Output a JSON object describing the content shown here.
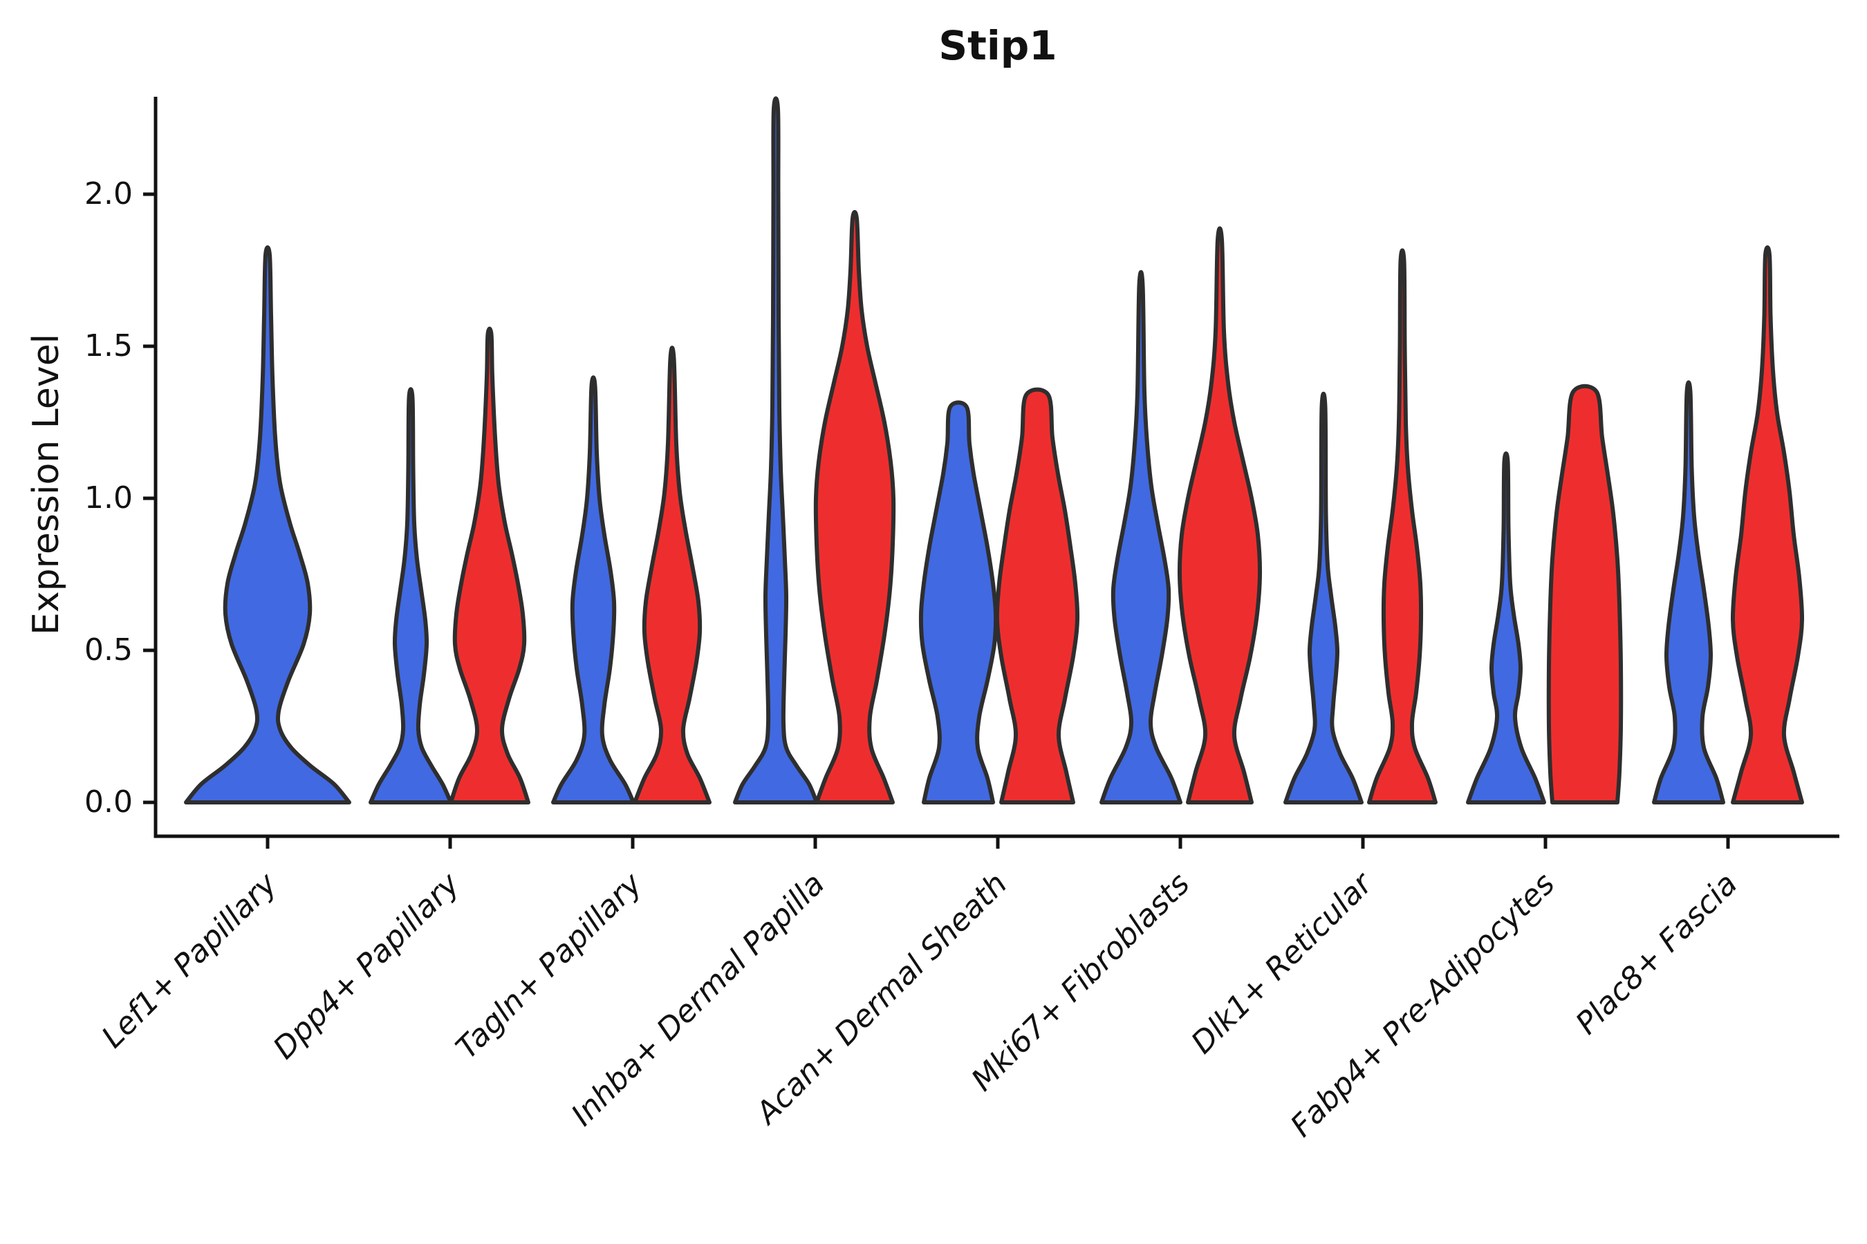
{
  "title": "Stip1",
  "axes": {
    "ylabel": "Expression Level",
    "ytick_labels": [
      "0.0",
      "0.5",
      "1.0",
      "1.5",
      "2.0"
    ]
  },
  "chart_data": {
    "type": "violin",
    "title": "Stip1",
    "xlabel": "",
    "ylabel": "Expression Level",
    "grid": false,
    "legend": "none",
    "ylim": [
      -0.11,
      2.32
    ],
    "ytick_values": [
      0.0,
      0.5,
      1.0,
      1.5,
      2.0
    ],
    "categories": [
      "Lef1+ Papillary",
      "Dpp4+ Papillary",
      "Tagln+ Papillary",
      "Inhba+ Dermal Papilla",
      "Acan+ Dermal Sheath",
      "Mki67+ Fibroblasts",
      "Dlk1+ Reticular",
      "Fabp4+ Pre-Adipocytes",
      "Plac8+ Fascia"
    ],
    "series": [
      {
        "name": "blue",
        "color": "#4169E1"
      },
      {
        "name": "red",
        "color": "#EE2E2E"
      }
    ],
    "edge_color": "#2e2e2e",
    "note": "Each violin: profile = [expression_value, half_width_px] pairs from base (0) to top; max_value = top of violin; blunt = truncated flat top.",
    "violins": [
      {
        "category": "Lef1+ Papillary",
        "series": "blue",
        "center_offset": 0,
        "max_value": 1.8,
        "blunt": false,
        "profile": [
          [
            0,
            118
          ],
          [
            0.06,
            96
          ],
          [
            0.12,
            62
          ],
          [
            0.18,
            34
          ],
          [
            0.24,
            18
          ],
          [
            0.3,
            16
          ],
          [
            0.4,
            30
          ],
          [
            0.52,
            52
          ],
          [
            0.62,
            61
          ],
          [
            0.72,
            58
          ],
          [
            0.82,
            46
          ],
          [
            0.92,
            32
          ],
          [
            1.05,
            18
          ],
          [
            1.2,
            11
          ],
          [
            1.4,
            7
          ],
          [
            1.6,
            5
          ],
          [
            1.8,
            3
          ]
        ]
      },
      {
        "category": "Dpp4+ Papillary",
        "series": "blue",
        "center_offset": -57,
        "max_value": 1.33,
        "blunt": false,
        "profile": [
          [
            0,
            58
          ],
          [
            0.06,
            46
          ],
          [
            0.12,
            30
          ],
          [
            0.18,
            16
          ],
          [
            0.24,
            11
          ],
          [
            0.32,
            13
          ],
          [
            0.42,
            19
          ],
          [
            0.52,
            23
          ],
          [
            0.6,
            21
          ],
          [
            0.7,
            15
          ],
          [
            0.8,
            9
          ],
          [
            0.92,
            5
          ],
          [
            1.1,
            3.5
          ],
          [
            1.33,
            2.5
          ]
        ]
      },
      {
        "category": "Dpp4+ Papillary",
        "series": "red",
        "center_offset": 57,
        "max_value": 1.54,
        "blunt": false,
        "profile": [
          [
            0,
            56
          ],
          [
            0.08,
            44
          ],
          [
            0.16,
            26
          ],
          [
            0.24,
            18
          ],
          [
            0.34,
            28
          ],
          [
            0.44,
            43
          ],
          [
            0.52,
            50
          ],
          [
            0.62,
            48
          ],
          [
            0.72,
            41
          ],
          [
            0.82,
            32
          ],
          [
            0.92,
            22
          ],
          [
            1.05,
            13
          ],
          [
            1.2,
            8
          ],
          [
            1.4,
            4
          ],
          [
            1.54,
            2.5
          ]
        ]
      },
      {
        "category": "Tagln+ Papillary",
        "series": "blue",
        "center_offset": -57,
        "max_value": 1.37,
        "blunt": false,
        "profile": [
          [
            0,
            58
          ],
          [
            0.06,
            46
          ],
          [
            0.14,
            24
          ],
          [
            0.22,
            13
          ],
          [
            0.32,
            16
          ],
          [
            0.44,
            24
          ],
          [
            0.56,
            29
          ],
          [
            0.66,
            30
          ],
          [
            0.76,
            25
          ],
          [
            0.88,
            16
          ],
          [
            1.0,
            9
          ],
          [
            1.15,
            5
          ],
          [
            1.37,
            2.5
          ]
        ]
      },
      {
        "category": "Tagln+ Papillary",
        "series": "red",
        "center_offset": 57,
        "max_value": 1.46,
        "blunt": false,
        "profile": [
          [
            0,
            54
          ],
          [
            0.08,
            40
          ],
          [
            0.16,
            22
          ],
          [
            0.24,
            16
          ],
          [
            0.34,
            25
          ],
          [
            0.46,
            35
          ],
          [
            0.56,
            40
          ],
          [
            0.66,
            38
          ],
          [
            0.78,
            29
          ],
          [
            0.9,
            19
          ],
          [
            1.02,
            11
          ],
          [
            1.18,
            6
          ],
          [
            1.46,
            2.5
          ]
        ]
      },
      {
        "category": "Inhba+ Dermal Papilla",
        "series": "blue",
        "center_offset": -57,
        "max_value": 2.28,
        "blunt": false,
        "profile": [
          [
            0,
            59
          ],
          [
            0.06,
            48
          ],
          [
            0.12,
            30
          ],
          [
            0.18,
            15
          ],
          [
            0.26,
            11
          ],
          [
            0.4,
            12
          ],
          [
            0.55,
            14
          ],
          [
            0.68,
            15
          ],
          [
            0.8,
            13
          ],
          [
            0.95,
            10
          ],
          [
            1.1,
            7
          ],
          [
            1.3,
            5
          ],
          [
            1.6,
            4
          ],
          [
            2.0,
            3.5
          ],
          [
            2.28,
            3
          ]
        ]
      },
      {
        "category": "Inhba+ Dermal Papilla",
        "series": "red",
        "center_offset": 57,
        "max_value": 1.92,
        "blunt": false,
        "profile": [
          [
            0,
            55
          ],
          [
            0.08,
            42
          ],
          [
            0.18,
            24
          ],
          [
            0.28,
            22
          ],
          [
            0.4,
            32
          ],
          [
            0.55,
            43
          ],
          [
            0.7,
            51
          ],
          [
            0.85,
            55
          ],
          [
            1.0,
            56
          ],
          [
            1.12,
            52
          ],
          [
            1.25,
            43
          ],
          [
            1.38,
            30
          ],
          [
            1.5,
            18
          ],
          [
            1.62,
            10
          ],
          [
            1.75,
            6
          ],
          [
            1.92,
            3
          ]
        ]
      },
      {
        "category": "Acan+ Dermal Sheath",
        "series": "blue",
        "center_offset": -57,
        "max_value": 1.3,
        "blunt": true,
        "profile": [
          [
            0,
            50
          ],
          [
            0.08,
            42
          ],
          [
            0.18,
            28
          ],
          [
            0.28,
            30
          ],
          [
            0.4,
            42
          ],
          [
            0.52,
            52
          ],
          [
            0.62,
            54
          ],
          [
            0.72,
            50
          ],
          [
            0.84,
            42
          ],
          [
            0.96,
            32
          ],
          [
            1.08,
            22
          ],
          [
            1.18,
            16
          ],
          [
            1.3,
            12
          ]
        ]
      },
      {
        "category": "Acan+ Dermal Sheath",
        "series": "red",
        "center_offset": 57,
        "max_value": 1.34,
        "blunt": true,
        "profile": [
          [
            0,
            52
          ],
          [
            0.1,
            42
          ],
          [
            0.22,
            31
          ],
          [
            0.34,
            40
          ],
          [
            0.48,
            52
          ],
          [
            0.6,
            58
          ],
          [
            0.72,
            55
          ],
          [
            0.84,
            48
          ],
          [
            0.96,
            40
          ],
          [
            1.08,
            30
          ],
          [
            1.2,
            22
          ],
          [
            1.34,
            16
          ]
        ]
      },
      {
        "category": "Mki67+ Fibroblasts",
        "series": "blue",
        "center_offset": -57,
        "max_value": 1.7,
        "blunt": false,
        "profile": [
          [
            0,
            57
          ],
          [
            0.08,
            44
          ],
          [
            0.18,
            22
          ],
          [
            0.26,
            14
          ],
          [
            0.36,
            20
          ],
          [
            0.48,
            30
          ],
          [
            0.6,
            38
          ],
          [
            0.7,
            40
          ],
          [
            0.8,
            34
          ],
          [
            0.92,
            24
          ],
          [
            1.04,
            15
          ],
          [
            1.18,
            9
          ],
          [
            1.35,
            5
          ],
          [
            1.7,
            2.5
          ]
        ]
      },
      {
        "category": "Mki67+ Fibroblasts",
        "series": "red",
        "center_offset": 57,
        "max_value": 1.85,
        "blunt": false,
        "profile": [
          [
            0,
            46
          ],
          [
            0.1,
            35
          ],
          [
            0.22,
            21
          ],
          [
            0.34,
            30
          ],
          [
            0.48,
            44
          ],
          [
            0.62,
            54
          ],
          [
            0.75,
            58
          ],
          [
            0.88,
            55
          ],
          [
            1.0,
            46
          ],
          [
            1.12,
            34
          ],
          [
            1.25,
            21
          ],
          [
            1.38,
            12
          ],
          [
            1.55,
            6
          ],
          [
            1.85,
            3
          ]
        ]
      },
      {
        "category": "Dlk1+ Reticular",
        "series": "blue",
        "center_offset": -57,
        "max_value": 1.3,
        "blunt": false,
        "profile": [
          [
            0,
            55
          ],
          [
            0.08,
            42
          ],
          [
            0.16,
            24
          ],
          [
            0.24,
            13
          ],
          [
            0.32,
            14
          ],
          [
            0.42,
            18
          ],
          [
            0.5,
            20
          ],
          [
            0.58,
            17
          ],
          [
            0.68,
            11
          ],
          [
            0.78,
            6
          ],
          [
            0.95,
            3.5
          ],
          [
            1.3,
            2.5
          ]
        ]
      },
      {
        "category": "Dlk1+ Reticular",
        "series": "red",
        "center_offset": 57,
        "max_value": 1.78,
        "blunt": false,
        "profile": [
          [
            0,
            48
          ],
          [
            0.08,
            37
          ],
          [
            0.18,
            18
          ],
          [
            0.26,
            14
          ],
          [
            0.36,
            20
          ],
          [
            0.48,
            25
          ],
          [
            0.6,
            27
          ],
          [
            0.72,
            26
          ],
          [
            0.84,
            21
          ],
          [
            0.96,
            14
          ],
          [
            1.1,
            8
          ],
          [
            1.25,
            5
          ],
          [
            1.5,
            3.5
          ],
          [
            1.78,
            2.5
          ]
        ]
      },
      {
        "category": "Fabp4+ Pre-Adipocytes",
        "series": "blue",
        "center_offset": -57,
        "max_value": 1.12,
        "blunt": false,
        "profile": [
          [
            0,
            55
          ],
          [
            0.08,
            42
          ],
          [
            0.18,
            22
          ],
          [
            0.28,
            13
          ],
          [
            0.36,
            18
          ],
          [
            0.44,
            21
          ],
          [
            0.52,
            18
          ],
          [
            0.62,
            11
          ],
          [
            0.72,
            6
          ],
          [
            0.9,
            3.5
          ],
          [
            1.12,
            2.5
          ]
        ]
      },
      {
        "category": "Fabp4+ Pre-Adipocytes",
        "series": "red",
        "center_offset": 57,
        "max_value": 1.35,
        "blunt": true,
        "profile": [
          [
            0,
            47
          ],
          [
            0.1,
            50
          ],
          [
            0.25,
            52
          ],
          [
            0.45,
            52
          ],
          [
            0.65,
            50
          ],
          [
            0.8,
            47
          ],
          [
            0.95,
            41
          ],
          [
            1.08,
            33
          ],
          [
            1.2,
            25
          ],
          [
            1.35,
            17
          ]
        ]
      },
      {
        "category": "Plac8+ Fascia",
        "series": "blue",
        "center_offset": -57,
        "max_value": 1.35,
        "blunt": false,
        "profile": [
          [
            0,
            50
          ],
          [
            0.08,
            40
          ],
          [
            0.18,
            22
          ],
          [
            0.28,
            20
          ],
          [
            0.38,
            28
          ],
          [
            0.48,
            32
          ],
          [
            0.58,
            29
          ],
          [
            0.7,
            22
          ],
          [
            0.82,
            14
          ],
          [
            0.94,
            8
          ],
          [
            1.1,
            4.5
          ],
          [
            1.35,
            2.5
          ]
        ]
      },
      {
        "category": "Plac8+ Fascia",
        "series": "red",
        "center_offset": 57,
        "max_value": 1.8,
        "blunt": false,
        "profile": [
          [
            0,
            50
          ],
          [
            0.1,
            38
          ],
          [
            0.22,
            24
          ],
          [
            0.34,
            32
          ],
          [
            0.48,
            44
          ],
          [
            0.6,
            50
          ],
          [
            0.74,
            46
          ],
          [
            0.88,
            38
          ],
          [
            1.02,
            32
          ],
          [
            1.15,
            24
          ],
          [
            1.28,
            14
          ],
          [
            1.42,
            8
          ],
          [
            1.6,
            4.5
          ],
          [
            1.8,
            3
          ]
        ]
      }
    ]
  }
}
